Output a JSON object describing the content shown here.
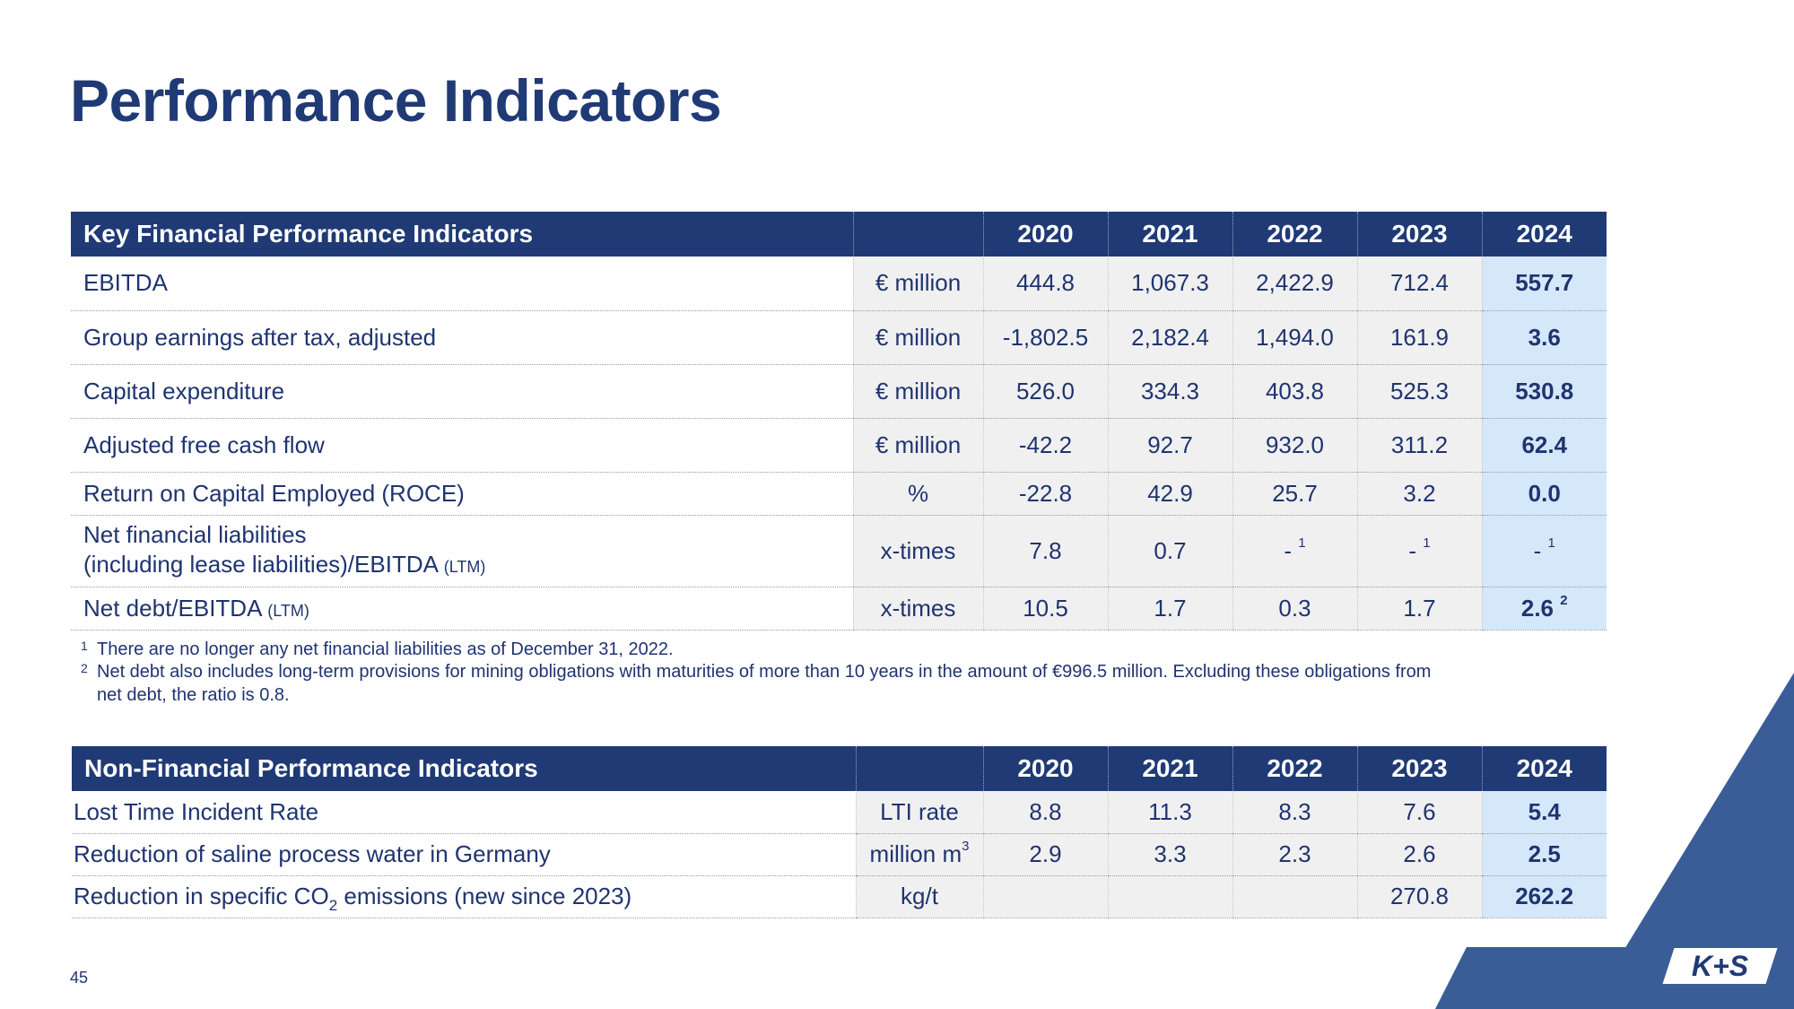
{
  "page_title": "Performance Indicators",
  "financial": {
    "header": "Key Financial Performance Indicators",
    "years": [
      "2020",
      "2021",
      "2022",
      "2023",
      "2024"
    ],
    "rows": [
      {
        "label": "EBITDA",
        "unit": "€ million",
        "values": [
          "444.8",
          "1,067.3",
          "2,422.9",
          "712.4",
          "557.7"
        ]
      },
      {
        "label": "Group earnings after tax, adjusted",
        "unit": "€ million",
        "values": [
          "-1,802.5",
          "2,182.4",
          "1,494.0",
          "161.9",
          "3.6"
        ]
      },
      {
        "label": "Capital expenditure",
        "unit": "€ million",
        "values": [
          "526.0",
          "334.3",
          "403.8",
          "525.3",
          "530.8"
        ]
      },
      {
        "label": "Adjusted free cash flow",
        "unit": "€ million",
        "values": [
          "-42.2",
          "92.7",
          "932.0",
          "311.2",
          "62.4"
        ]
      },
      {
        "label": "Return on Capital Employed (ROCE)",
        "unit": "%",
        "values": [
          "-22.8",
          "42.9",
          "25.7",
          "3.2",
          "0.0"
        ]
      },
      {
        "label_line1": "Net financial liabilities",
        "label_line2": "(including lease liabilities)/EBITDA",
        "label_suffix": "(LTM)",
        "unit": "x-times",
        "values": [
          "7.8",
          "0.7",
          "-",
          "-",
          "-"
        ],
        "footnote_marks": [
          "",
          "",
          "1",
          "1",
          "1"
        ]
      },
      {
        "label": "Net debt/EBITDA",
        "label_suffix": "(LTM)",
        "unit": "x-times",
        "values": [
          "10.5",
          "1.7",
          "0.3",
          "1.7",
          "2.6"
        ],
        "footnote_marks": [
          "",
          "",
          "",
          "",
          "2"
        ]
      }
    ],
    "footnotes": [
      {
        "mark": "1",
        "text": "There are no longer any net financial liabilities as of December 31, 2022."
      },
      {
        "mark": "2",
        "text_line1": "Net debt also includes long-term provisions for mining obligations with maturities of more than 10 years in the amount of €996.5 million. Excluding these obligations from",
        "text_line2": "net debt, the ratio is 0.8."
      }
    ]
  },
  "nonfinancial": {
    "header": "Non-Financial Performance Indicators",
    "years": [
      "2020",
      "2021",
      "2022",
      "2023",
      "2024"
    ],
    "rows": [
      {
        "label": "Lost Time Incident Rate",
        "unit": "LTI rate",
        "values": [
          "8.8",
          "11.3",
          "8.3",
          "7.6",
          "5.4"
        ]
      },
      {
        "label": "Reduction of saline process water in Germany",
        "unit": "million m",
        "unit_sup": "3",
        "values": [
          "2.9",
          "3.3",
          "2.3",
          "2.6",
          "2.5"
        ]
      },
      {
        "label_pre": "Reduction in specific CO",
        "label_sub": "2",
        "label_post": " emissions (new since 2023)",
        "unit": "kg/t",
        "values": [
          "",
          "",
          "",
          "270.8",
          "262.2"
        ]
      }
    ]
  },
  "page_number": "45",
  "logo_text": "K+S",
  "colors": {
    "navy": "#1f3a75",
    "highlight": "#d5e8fa",
    "cell_gray": "#f0f0f0",
    "deco_blue": "#3a5d98"
  }
}
